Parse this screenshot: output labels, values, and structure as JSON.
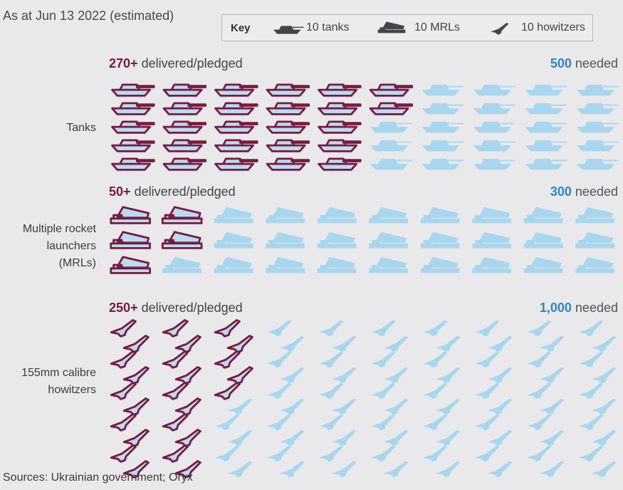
{
  "header": {
    "as_at": "As at Jun 13 2022 (estimated)"
  },
  "key": {
    "title": "Key",
    "items": [
      {
        "icon": "tank-icon",
        "label": "10 tanks"
      },
      {
        "icon": "mrl-icon",
        "label": "10 MRLs"
      },
      {
        "icon": "howitzer-icon",
        "label": "10 howitzers"
      }
    ]
  },
  "colors": {
    "delivered_fill": "#b8dcf2",
    "delivered_stroke": "#7a1a3e",
    "needed_fill": "#a9d6ef",
    "delivered_text": "#7a1a3e",
    "needed_text": "#2e86c1"
  },
  "chart_data": [
    {
      "type": "pictogram",
      "label": "Tanks",
      "icon": "tank-icon",
      "units_per_icon": 10,
      "delivered_value": "270+",
      "delivered_text": "delivered/pledged",
      "needed_value": "500",
      "needed_text": "needed",
      "delivered": 270,
      "needed": 500
    },
    {
      "type": "pictogram",
      "label": "Multiple rocket launchers (MRLs)",
      "label_lines": [
        "Multiple rocket",
        "launchers",
        "(MRLs)"
      ],
      "icon": "mrl-icon",
      "units_per_icon": 10,
      "delivered_value": "50+",
      "delivered_text": "delivered/pledged",
      "needed_value": "300",
      "needed_text": "needed",
      "delivered": 50,
      "needed": 300
    },
    {
      "type": "pictogram",
      "label": "155mm calibre howitzers",
      "label_lines": [
        "155mm calibre",
        "howitzers"
      ],
      "icon": "howitzer-icon",
      "units_per_icon": 10,
      "delivered_value": "250+",
      "delivered_text": "delivered/pledged",
      "needed_value": "1,000",
      "needed_text": "needed",
      "delivered": 250,
      "needed": 1000
    }
  ],
  "footer": {
    "sources": "Sources: Ukrainian government; Oryx"
  }
}
